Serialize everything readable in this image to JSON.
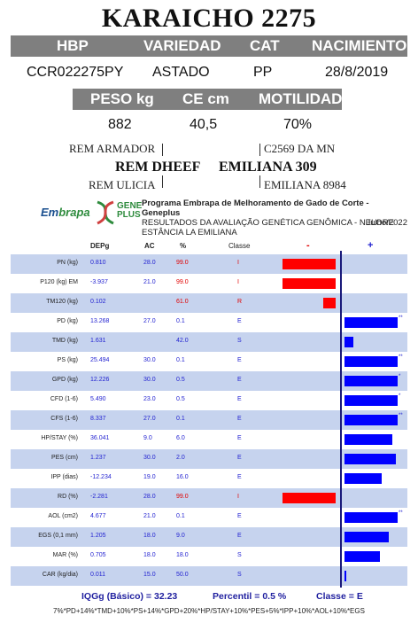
{
  "title": "KARAICHO 2275",
  "header1": {
    "labels": [
      "HBP",
      "VARIEDAD",
      "CAT",
      "NACIMIENTO"
    ],
    "values": [
      "CCR022275PY",
      "ASTADO",
      "PP",
      "28/8/2019"
    ]
  },
  "header2": {
    "labels": [
      "PESO kg",
      "CE cm",
      "MOTILIDAD"
    ],
    "values": [
      "882",
      "40,5",
      "70%"
    ]
  },
  "pedigree": {
    "sire_sire": "REM ARMADOR",
    "sire": "REM DHEEF",
    "sire_dam": "REM ULICIA",
    "dam_sire": "C2569 DA MN",
    "dam": "EMILIANA 309",
    "dam_dam": "EMILIANA 8984"
  },
  "logos": {
    "embrapa_a": "Em",
    "embrapa_b": "brapa",
    "gene_line1": "GENE",
    "gene_line2": "PLUS"
  },
  "program": {
    "line1": "Programa Embrapa de Melhoramento de Gado de Corte - Geneplus",
    "line2": "RESULTADOS DA AVALIAÇÃO GENÉTICA GENÔMICA - NELORE",
    "line3": "ESTÂNCIA LA EMILIANA",
    "date": "Julho/2022"
  },
  "table": {
    "headers": {
      "dep": "DEPg",
      "ac": "AC",
      "pct": "%",
      "cls": "Classe",
      "minus": "-",
      "plus": "+"
    },
    "rows": [
      {
        "label": "PN (kg)",
        "dep": "0.810",
        "ac": "28.0",
        "pct": "99.0",
        "cls": "I",
        "bar": -60,
        "red": true,
        "stars": ""
      },
      {
        "label": "P120 (kg) EM",
        "dep": "-3.937",
        "ac": "21.0",
        "pct": "99.0",
        "cls": "I",
        "bar": -60,
        "red": true,
        "stars": ""
      },
      {
        "label": "TM120 (kg)",
        "dep": "0.102",
        "ac": "",
        "pct": "61.0",
        "cls": "R",
        "bar": -14,
        "red": true,
        "stars": ""
      },
      {
        "label": "PD (kg)",
        "dep": "13.268",
        "ac": "27.0",
        "pct": "0.1",
        "cls": "E",
        "bar": 60,
        "red": false,
        "stars": "**"
      },
      {
        "label": "TMD (kg)",
        "dep": "1.631",
        "ac": "",
        "pct": "42.0",
        "cls": "S",
        "bar": 10,
        "red": false,
        "stars": ""
      },
      {
        "label": "PS (kg)",
        "dep": "25.494",
        "ac": "30.0",
        "pct": "0.1",
        "cls": "E",
        "bar": 60,
        "red": false,
        "stars": "**"
      },
      {
        "label": "GPD (kg)",
        "dep": "12.226",
        "ac": "30.0",
        "pct": "0.5",
        "cls": "E",
        "bar": 60,
        "red": false,
        "stars": "*"
      },
      {
        "label": "CFD (1-6)",
        "dep": "5.490",
        "ac": "23.0",
        "pct": "0.5",
        "cls": "E",
        "bar": 60,
        "red": false,
        "stars": "*"
      },
      {
        "label": "CFS (1-6)",
        "dep": "8.337",
        "ac": "27.0",
        "pct": "0.1",
        "cls": "E",
        "bar": 60,
        "red": false,
        "stars": "**"
      },
      {
        "label": "HP/STAY (%)",
        "dep": "36.041",
        "ac": "9.0",
        "pct": "6.0",
        "cls": "E",
        "bar": 54,
        "red": false,
        "stars": ""
      },
      {
        "label": "PES (cm)",
        "dep": "1.237",
        "ac": "30.0",
        "pct": "2.0",
        "cls": "E",
        "bar": 58,
        "red": false,
        "stars": ""
      },
      {
        "label": "IPP (dias)",
        "dep": "-12.234",
        "ac": "19.0",
        "pct": "16.0",
        "cls": "E",
        "bar": 42,
        "red": false,
        "stars": ""
      },
      {
        "label": "RD (%)",
        "dep": "-2.281",
        "ac": "28.0",
        "pct": "99.0",
        "cls": "I",
        "bar": -60,
        "red": true,
        "stars": ""
      },
      {
        "label": "AOL (cm2)",
        "dep": "4.677",
        "ac": "21.0",
        "pct": "0.1",
        "cls": "E",
        "bar": 60,
        "red": false,
        "stars": "**"
      },
      {
        "label": "EGS (0,1 mm)",
        "dep": "1.205",
        "ac": "18.0",
        "pct": "9.0",
        "cls": "E",
        "bar": 50,
        "red": false,
        "stars": ""
      },
      {
        "label": "MAR (%)",
        "dep": "0.705",
        "ac": "18.0",
        "pct": "18.0",
        "cls": "S",
        "bar": 40,
        "red": false,
        "stars": ""
      },
      {
        "label": "CAR (kg/dia)",
        "dep": "0.011",
        "ac": "15.0",
        "pct": "50.0",
        "cls": "S",
        "bar": 2,
        "red": false,
        "stars": ""
      }
    ]
  },
  "footer": {
    "iqg": "IQGg (Básico) = 32.23",
    "percentil": "Percentil = 0.5 %",
    "classe": "Classe = E",
    "formula": "7%*PD+14%*TMD+10%*PS+14%*GPD+20%*HP/STAY+10%*PES+5%*IPP+10%*AOL+10%*EGS"
  }
}
